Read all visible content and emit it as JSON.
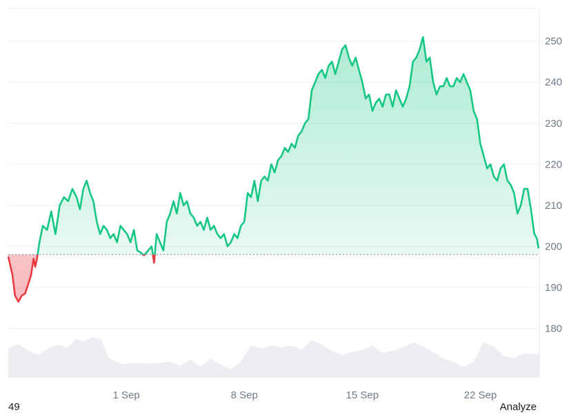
{
  "chart_data": {
    "type": "area",
    "baseline": 198,
    "ylim": [
      168,
      258
    ],
    "y_ticks": [
      180,
      190,
      200,
      210,
      220,
      230,
      240,
      250
    ],
    "x_ticks": [
      {
        "label": "1 Sep",
        "day": 7.0
      },
      {
        "label": "8 Sep",
        "day": 14.0
      },
      {
        "label": "15 Sep",
        "day": 21.0
      },
      {
        "label": "22 Sep",
        "day": 28.0
      }
    ],
    "xlim_days": [
      0,
      31.5
    ],
    "colors": {
      "up": "#16c784",
      "down": "#ea3943",
      "volume": "#eceef1",
      "grid": "#eef0f3",
      "baseline": "#8a8f98"
    },
    "series": [
      {
        "price": [
          [
            0.0,
            197.5
          ],
          [
            0.25,
            193
          ],
          [
            0.4,
            188
          ],
          [
            0.6,
            186.5
          ],
          [
            0.8,
            188
          ],
          [
            1.0,
            188.5
          ],
          [
            1.2,
            191
          ],
          [
            1.35,
            193
          ],
          [
            1.5,
            197
          ],
          [
            1.6,
            195
          ],
          [
            1.7,
            197
          ],
          [
            1.85,
            201
          ],
          [
            2.05,
            205
          ],
          [
            2.3,
            204
          ],
          [
            2.55,
            208.5
          ],
          [
            2.8,
            203
          ],
          [
            3.05,
            210
          ],
          [
            3.3,
            212
          ],
          [
            3.55,
            211
          ],
          [
            3.8,
            214
          ],
          [
            4.05,
            212
          ],
          [
            4.25,
            209
          ],
          [
            4.45,
            214
          ],
          [
            4.65,
            216
          ],
          [
            4.85,
            213
          ],
          [
            5.05,
            211
          ],
          [
            5.25,
            206
          ],
          [
            5.45,
            203
          ],
          [
            5.65,
            205
          ],
          [
            5.85,
            204
          ],
          [
            6.05,
            202
          ],
          [
            6.25,
            203
          ],
          [
            6.45,
            201
          ],
          [
            6.65,
            205
          ],
          [
            6.85,
            204
          ],
          [
            7.05,
            203
          ],
          [
            7.25,
            201
          ],
          [
            7.45,
            204
          ],
          [
            7.65,
            199
          ],
          [
            7.85,
            198.5
          ],
          [
            8.05,
            197.8
          ],
          [
            8.3,
            199
          ],
          [
            8.5,
            200
          ],
          [
            8.65,
            196
          ],
          [
            8.8,
            203
          ],
          [
            9.0,
            201
          ],
          [
            9.2,
            199
          ],
          [
            9.4,
            206
          ],
          [
            9.6,
            208
          ],
          [
            9.8,
            211
          ],
          [
            10.0,
            208
          ],
          [
            10.2,
            213
          ],
          [
            10.4,
            210
          ],
          [
            10.6,
            211
          ],
          [
            10.8,
            208
          ],
          [
            11.0,
            207
          ],
          [
            11.2,
            205
          ],
          [
            11.4,
            206
          ],
          [
            11.6,
            204
          ],
          [
            11.8,
            207
          ],
          [
            12.0,
            204
          ],
          [
            12.2,
            205
          ],
          [
            12.4,
            203
          ],
          [
            12.6,
            202
          ],
          [
            12.8,
            203
          ],
          [
            13.0,
            200
          ],
          [
            13.2,
            201
          ],
          [
            13.4,
            203
          ],
          [
            13.6,
            202
          ],
          [
            13.8,
            205
          ],
          [
            14.0,
            206
          ],
          [
            14.2,
            213
          ],
          [
            14.4,
            212
          ],
          [
            14.6,
            216
          ],
          [
            14.8,
            211
          ],
          [
            15.0,
            216
          ],
          [
            15.2,
            217
          ],
          [
            15.4,
            216
          ],
          [
            15.6,
            220
          ],
          [
            15.8,
            218
          ],
          [
            16.0,
            221
          ],
          [
            16.2,
            222
          ],
          [
            16.4,
            224
          ],
          [
            16.6,
            223
          ],
          [
            16.8,
            225
          ],
          [
            17.0,
            224
          ],
          [
            17.2,
            227
          ],
          [
            17.4,
            228
          ],
          [
            17.6,
            230
          ],
          [
            17.8,
            231
          ],
          [
            18.0,
            238
          ],
          [
            18.2,
            240
          ],
          [
            18.4,
            242
          ],
          [
            18.6,
            243
          ],
          [
            18.8,
            241
          ],
          [
            19.0,
            244
          ],
          [
            19.2,
            245
          ],
          [
            19.4,
            242
          ],
          [
            19.6,
            245
          ],
          [
            19.8,
            248
          ],
          [
            20.0,
            249
          ],
          [
            20.2,
            246
          ],
          [
            20.4,
            244
          ],
          [
            20.6,
            246
          ],
          [
            20.8,
            243
          ],
          [
            21.0,
            240
          ],
          [
            21.2,
            236
          ],
          [
            21.4,
            237
          ],
          [
            21.6,
            233
          ],
          [
            21.8,
            235
          ],
          [
            22.0,
            236
          ],
          [
            22.2,
            234
          ],
          [
            22.4,
            237
          ],
          [
            22.6,
            237
          ],
          [
            22.8,
            234
          ],
          [
            23.0,
            238
          ],
          [
            23.2,
            236
          ],
          [
            23.4,
            234
          ],
          [
            23.6,
            236
          ],
          [
            23.8,
            239
          ],
          [
            24.0,
            245
          ],
          [
            24.2,
            246
          ],
          [
            24.4,
            248
          ],
          [
            24.6,
            251
          ],
          [
            24.8,
            245
          ],
          [
            25.0,
            246
          ],
          [
            25.2,
            240
          ],
          [
            25.4,
            237
          ],
          [
            25.6,
            239
          ],
          [
            25.8,
            239
          ],
          [
            26.0,
            241
          ],
          [
            26.2,
            239
          ],
          [
            26.4,
            239
          ],
          [
            26.6,
            241
          ],
          [
            26.8,
            240
          ],
          [
            27.0,
            242
          ],
          [
            27.2,
            240
          ],
          [
            27.4,
            238
          ],
          [
            27.6,
            233
          ],
          [
            27.8,
            231
          ],
          [
            28.0,
            225
          ],
          [
            28.2,
            222
          ],
          [
            28.4,
            219
          ],
          [
            28.6,
            220
          ],
          [
            28.8,
            217
          ],
          [
            29.0,
            216
          ],
          [
            29.2,
            219
          ],
          [
            29.4,
            220
          ],
          [
            29.6,
            216
          ],
          [
            29.8,
            215
          ],
          [
            30.0,
            213
          ],
          [
            30.2,
            208
          ],
          [
            30.4,
            210
          ],
          [
            30.6,
            214
          ],
          [
            30.8,
            214
          ],
          [
            31.0,
            209
          ],
          [
            31.1,
            206
          ],
          [
            31.2,
            203
          ],
          [
            31.35,
            202
          ],
          [
            31.45,
            199.5
          ]
        ],
        "volume": [
          [
            0.0,
            0.55
          ],
          [
            0.6,
            0.62
          ],
          [
            1.2,
            0.5
          ],
          [
            1.8,
            0.42
          ],
          [
            2.4,
            0.55
          ],
          [
            3.0,
            0.62
          ],
          [
            3.5,
            0.55
          ],
          [
            4.0,
            0.72
          ],
          [
            4.5,
            0.68
          ],
          [
            5.0,
            0.75
          ],
          [
            5.5,
            0.72
          ],
          [
            6.0,
            0.35
          ],
          [
            6.8,
            0.25
          ],
          [
            7.6,
            0.28
          ],
          [
            8.4,
            0.26
          ],
          [
            9.0,
            0.28
          ],
          [
            9.6,
            0.3
          ],
          [
            10.2,
            0.22
          ],
          [
            10.8,
            0.34
          ],
          [
            11.4,
            0.2
          ],
          [
            12.0,
            0.36
          ],
          [
            12.6,
            0.24
          ],
          [
            13.2,
            0.16
          ],
          [
            13.8,
            0.3
          ],
          [
            14.4,
            0.6
          ],
          [
            15.0,
            0.55
          ],
          [
            15.6,
            0.6
          ],
          [
            16.2,
            0.56
          ],
          [
            16.8,
            0.6
          ],
          [
            17.4,
            0.52
          ],
          [
            18.0,
            0.7
          ],
          [
            18.6,
            0.62
          ],
          [
            19.2,
            0.5
          ],
          [
            19.8,
            0.42
          ],
          [
            20.4,
            0.48
          ],
          [
            21.0,
            0.52
          ],
          [
            21.6,
            0.6
          ],
          [
            22.2,
            0.46
          ],
          [
            22.8,
            0.5
          ],
          [
            23.4,
            0.56
          ],
          [
            24.0,
            0.66
          ],
          [
            24.6,
            0.58
          ],
          [
            25.2,
            0.48
          ],
          [
            25.8,
            0.36
          ],
          [
            26.4,
            0.3
          ],
          [
            27.0,
            0.2
          ],
          [
            27.6,
            0.3
          ],
          [
            28.2,
            0.66
          ],
          [
            28.8,
            0.58
          ],
          [
            29.4,
            0.4
          ],
          [
            30.0,
            0.36
          ],
          [
            30.6,
            0.46
          ],
          [
            31.2,
            0.44
          ],
          [
            31.5,
            0.44
          ]
        ]
      }
    ]
  },
  "footer": {
    "left_text": "49",
    "right_text": "Analyze"
  }
}
